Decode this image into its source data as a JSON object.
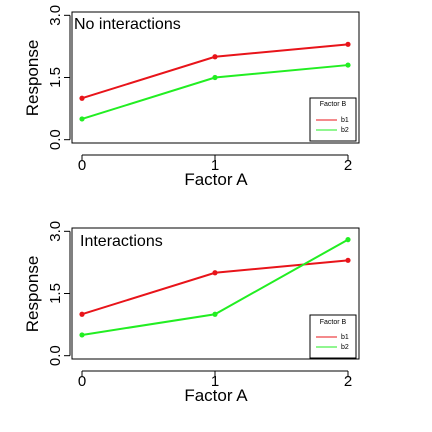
{
  "colors": {
    "b1": "#e8141a",
    "b2": "#22ee22",
    "axis": "#000000",
    "background": "#ffffff"
  },
  "chart_data": [
    {
      "type": "line",
      "title": "No interactions",
      "xlabel": "Factor A",
      "ylabel": "Response",
      "x": [
        0,
        1,
        2
      ],
      "xticks": [
        "0",
        "1",
        "2"
      ],
      "yticks": [
        "0.0",
        "1.5",
        "3.0"
      ],
      "ylim": [
        0,
        3
      ],
      "legend": {
        "title": "Factor B",
        "position": "bottom-right"
      },
      "series": [
        {
          "name": "b1",
          "values": [
            1.0,
            2.0,
            2.3
          ]
        },
        {
          "name": "b2",
          "values": [
            0.5,
            1.5,
            1.8
          ]
        }
      ]
    },
    {
      "type": "line",
      "title": "Interactions",
      "xlabel": "Factor A",
      "ylabel": "Response",
      "x": [
        0,
        1,
        2
      ],
      "xticks": [
        "0",
        "1",
        "2"
      ],
      "yticks": [
        "0.0",
        "1.5",
        "3.0"
      ],
      "ylim": [
        0,
        3
      ],
      "legend": {
        "title": "Factor B",
        "position": "bottom-right"
      },
      "series": [
        {
          "name": "b1",
          "values": [
            1.0,
            2.0,
            2.3
          ]
        },
        {
          "name": "b2",
          "values": [
            0.5,
            1.0,
            2.8
          ]
        }
      ]
    }
  ]
}
